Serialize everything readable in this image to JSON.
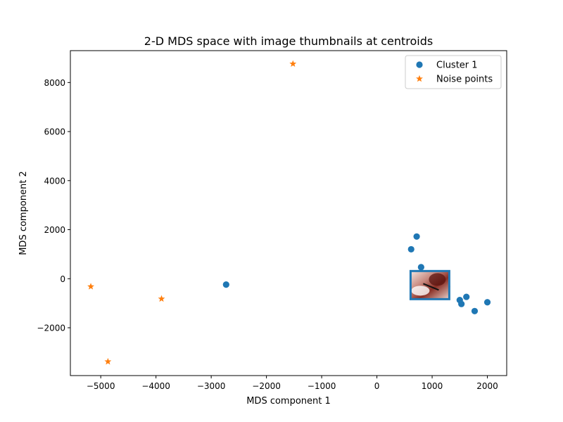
{
  "chart_data": {
    "type": "scatter",
    "title": "2-D MDS space with image thumbnails at centroids",
    "xlabel": "MDS component 1",
    "ylabel": "MDS component 2",
    "xlim": [
      -5550,
      2350
    ],
    "ylim": [
      -3950,
      9300
    ],
    "xticks": [
      -5000,
      -4000,
      -3000,
      -2000,
      -1000,
      0,
      1000,
      2000
    ],
    "yticks": [
      -2000,
      0,
      2000,
      4000,
      6000,
      8000
    ],
    "grid": false,
    "legend_position": "top-right",
    "series": [
      {
        "name": "Cluster 1",
        "marker": "circle",
        "color": "#1f77b4",
        "points": [
          {
            "x": 720,
            "y": 1720
          },
          {
            "x": 620,
            "y": 1200
          },
          {
            "x": 800,
            "y": 470
          },
          {
            "x": -2730,
            "y": -240
          },
          {
            "x": 710,
            "y": -610
          },
          {
            "x": 950,
            "y": -200
          },
          {
            "x": 960,
            "y": -490
          },
          {
            "x": 1240,
            "y": -20
          },
          {
            "x": 1270,
            "y": -320
          },
          {
            "x": 1200,
            "y": -430
          },
          {
            "x": 1500,
            "y": -870
          },
          {
            "x": 1530,
            "y": -1030
          },
          {
            "x": 1620,
            "y": -740
          },
          {
            "x": 1770,
            "y": -1320
          },
          {
            "x": 2000,
            "y": -960
          }
        ]
      },
      {
        "name": "Noise points",
        "marker": "star",
        "color": "#ff7f0e",
        "points": [
          {
            "x": -1520,
            "y": 8760
          },
          {
            "x": -5180,
            "y": -320
          },
          {
            "x": -3900,
            "y": -820
          },
          {
            "x": -4870,
            "y": -3380
          }
        ]
      }
    ],
    "thumbnails": [
      {
        "cluster": "Cluster 1",
        "centroid": {
          "x": 960,
          "y": -260
        },
        "border_color": "#1f77b4"
      }
    ]
  }
}
